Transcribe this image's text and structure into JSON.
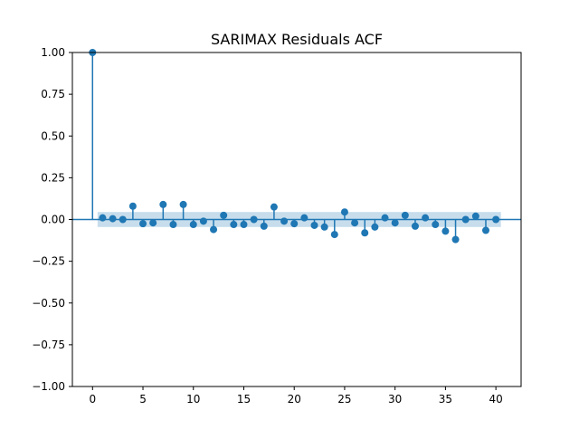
{
  "chart_data": {
    "type": "stem",
    "title": "SARIMAX Residuals ACF",
    "xlabel": "",
    "ylabel": "",
    "xlim": [
      -2,
      42.5
    ],
    "ylim": [
      -1.0,
      1.0
    ],
    "xticks": [
      0,
      5,
      10,
      15,
      20,
      25,
      30,
      35,
      40
    ],
    "yticks": [
      -1.0,
      -0.75,
      -0.5,
      -0.25,
      0.0,
      0.25,
      0.5,
      0.75,
      1.0
    ],
    "xtick_labels": [
      "0",
      "5",
      "10",
      "15",
      "20",
      "25",
      "30",
      "35",
      "40"
    ],
    "ytick_labels": [
      "−1.00",
      "−0.75",
      "−0.50",
      "−0.25",
      "0.00",
      "0.25",
      "0.50",
      "0.75",
      "1.00"
    ],
    "grid": false,
    "lags": [
      0,
      1,
      2,
      3,
      4,
      5,
      6,
      7,
      8,
      9,
      10,
      11,
      12,
      13,
      14,
      15,
      16,
      17,
      18,
      19,
      20,
      21,
      22,
      23,
      24,
      25,
      26,
      27,
      28,
      29,
      30,
      31,
      32,
      33,
      34,
      35,
      36,
      37,
      38,
      39,
      40
    ],
    "acf": [
      1.0,
      0.01,
      0.005,
      0.0,
      0.08,
      -0.025,
      -0.02,
      0.09,
      -0.03,
      0.09,
      -0.03,
      -0.01,
      -0.06,
      0.025,
      -0.03,
      -0.03,
      0.0,
      -0.04,
      0.075,
      -0.01,
      -0.025,
      0.01,
      -0.035,
      -0.045,
      -0.09,
      0.045,
      -0.02,
      -0.08,
      -0.045,
      0.01,
      -0.02,
      0.025,
      -0.04,
      0.01,
      -0.03,
      -0.07,
      -0.12,
      0.0,
      0.02,
      -0.065,
      0.0
    ],
    "confidence_band": {
      "lags": [
        1,
        40
      ],
      "upper": 0.045,
      "lower": -0.045
    },
    "colors": {
      "stem": "#1f77b4",
      "band": "#1f77b4",
      "axis": "#000000"
    }
  }
}
